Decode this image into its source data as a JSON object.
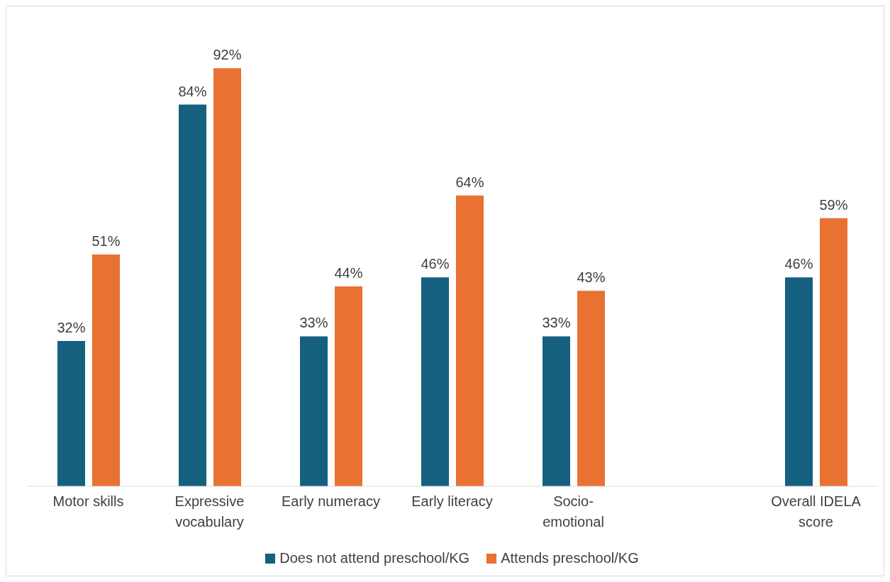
{
  "chart_data": {
    "type": "bar",
    "categories": [
      "Motor skills",
      "Expressive vocabulary",
      "Early numeracy",
      "Early literacy",
      "Socio-emotional",
      null,
      "Overall IDELA score"
    ],
    "series": [
      {
        "name": "Does not attend preschool/KG",
        "color": "#15607f",
        "values": [
          32,
          84,
          33,
          46,
          33,
          null,
          46
        ],
        "value_labels": [
          "32%",
          "84%",
          "33%",
          "46%",
          "33%",
          null,
          "46%"
        ]
      },
      {
        "name": "Attends preschool/KG",
        "color": "#e97132",
        "values": [
          51,
          92,
          44,
          64,
          43,
          null,
          59
        ],
        "value_labels": [
          "51%",
          "92%",
          "44%",
          "64%",
          "43%",
          null,
          "59%"
        ]
      }
    ],
    "tick_labels": "x",
    "grid": false,
    "legend": "bottom"
  }
}
